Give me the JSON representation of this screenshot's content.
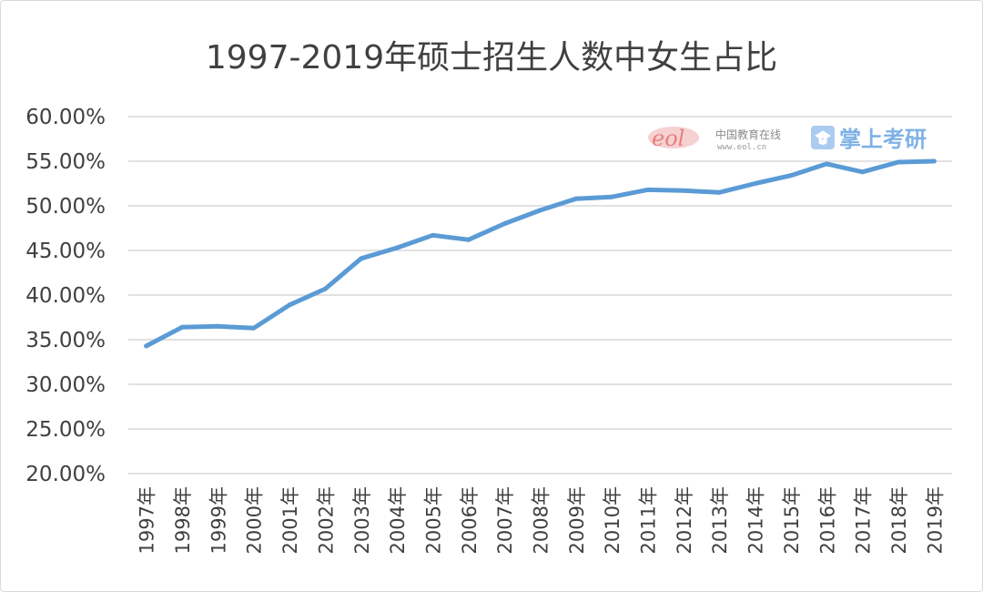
{
  "chart_data": {
    "type": "line",
    "title": "1997-2019年硕士招生人数中女生占比",
    "categories": [
      "1997年",
      "1998年",
      "1999年",
      "2000年",
      "2001年",
      "2002年",
      "2003年",
      "2004年",
      "2005年",
      "2006年",
      "2007年",
      "2008年",
      "2009年",
      "2010年",
      "2011年",
      "2012年",
      "2013年",
      "2014年",
      "2015年",
      "2016年",
      "2017年",
      "2018年",
      "2019年"
    ],
    "series": [
      {
        "values": [
          34.3,
          36.4,
          36.5,
          36.3,
          38.9,
          40.7,
          44.1,
          45.3,
          46.7,
          46.2,
          48.0,
          49.5,
          50.8,
          51.0,
          51.8,
          51.7,
          51.5,
          52.5,
          53.4,
          54.7,
          53.8,
          54.9,
          55.0
        ]
      }
    ],
    "ylim": [
      20,
      60
    ],
    "yticks": [
      "60.00%",
      "55.00%",
      "50.00%",
      "45.00%",
      "40.00%",
      "35.00%",
      "30.00%",
      "25.00%",
      "20.00%"
    ],
    "grid": true,
    "line_color": "#5b9bd5"
  },
  "watermark": {
    "logo": "eol",
    "name": "中国教育在线",
    "url": "www.eol.cn",
    "brand": "掌上考研"
  }
}
